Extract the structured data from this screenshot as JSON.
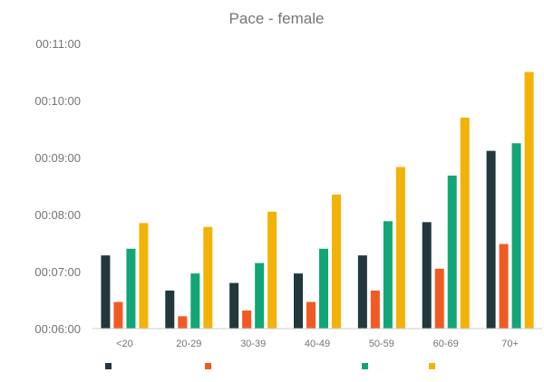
{
  "chart_data": {
    "type": "bar",
    "title": "Pace - female",
    "xlabel": "",
    "ylabel": "",
    "categories": [
      "<20",
      "20-29",
      "30-39",
      "40-49",
      "50-59",
      "60-69",
      "70+"
    ],
    "y_ticks": [
      "00:06:00",
      "00:07:00",
      "00:08:00",
      "00:09:00",
      "00:10:00",
      "00:11:00"
    ],
    "ylim_seconds": [
      360,
      660
    ],
    "y_unit": "seconds per km (displayed as hh:mm:ss)",
    "grid": false,
    "legend_position": "bottom-left",
    "series": [
      {
        "color": "#21383d",
        "values": [
          437,
          400,
          408,
          418,
          437,
          472,
          547
        ]
      },
      {
        "color": "#f15a22",
        "values": [
          388,
          373,
          379,
          388,
          400,
          423,
          449
        ]
      },
      {
        "color": "#12a677",
        "values": [
          444,
          418,
          429,
          444,
          473,
          521,
          555
        ]
      },
      {
        "color": "#f3b206",
        "values": [
          471,
          467,
          483,
          501,
          530,
          582,
          630
        ]
      }
    ]
  }
}
